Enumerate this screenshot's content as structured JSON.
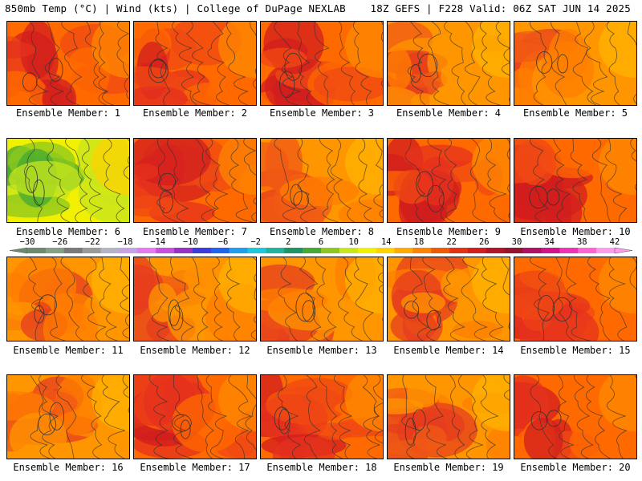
{
  "header": {
    "left": "850mb Temp (°C) | Wind (kts) | College of DuPage NEXLAB",
    "right": "18Z GEFS | F228 Valid: 06Z SAT JUN 14 2025"
  },
  "members": [
    {
      "label": "Ensemble Member: 1",
      "scheme": "hot"
    },
    {
      "label": "Ensemble Member: 2",
      "scheme": "hot"
    },
    {
      "label": "Ensemble Member: 3",
      "scheme": "hot"
    },
    {
      "label": "Ensemble Member: 4",
      "scheme": "warm"
    },
    {
      "label": "Ensemble Member: 5",
      "scheme": "warm"
    },
    {
      "label": "Ensemble Member: 6",
      "scheme": "cool"
    },
    {
      "label": "Ensemble Member: 7",
      "scheme": "hot"
    },
    {
      "label": "Ensemble Member: 8",
      "scheme": "warm"
    },
    {
      "label": "Ensemble Member: 9",
      "scheme": "hot"
    },
    {
      "label": "Ensemble Member: 10",
      "scheme": "hot"
    },
    {
      "label": "Ensemble Member: 11",
      "scheme": "warm"
    },
    {
      "label": "Ensemble Member: 12",
      "scheme": "warm"
    },
    {
      "label": "Ensemble Member: 13",
      "scheme": "warm"
    },
    {
      "label": "Ensemble Member: 14",
      "scheme": "warm"
    },
    {
      "label": "Ensemble Member: 15",
      "scheme": "hot"
    },
    {
      "label": "Ensemble Member: 16",
      "scheme": "warm"
    },
    {
      "label": "Ensemble Member: 17",
      "scheme": "hot"
    },
    {
      "label": "Ensemble Member: 18",
      "scheme": "hot"
    },
    {
      "label": "Ensemble Member: 19",
      "scheme": "warm"
    },
    {
      "label": "Ensemble Member: 20",
      "scheme": "hot"
    }
  ],
  "colorbar": {
    "ticks": [
      "−30",
      "−26",
      "−22",
      "−18",
      "−14",
      "−10",
      "−6",
      "−2",
      "2",
      "6",
      "10",
      "14",
      "18",
      "22",
      "26",
      "30",
      "34",
      "38",
      "42"
    ],
    "colors": [
      "#6e8a6e",
      "#86a086",
      "#7a7a7a",
      "#9a9a9a",
      "#b4b4c8",
      "#c8a0e6",
      "#e678f0",
      "#c850e0",
      "#9632c8",
      "#3c3cdc",
      "#1e64f0",
      "#1ea0f0",
      "#1ec8dc",
      "#1eb4a0",
      "#1e9664",
      "#46aa32",
      "#8cc81e",
      "#c8e61e",
      "#f0f000",
      "#ffd200",
      "#ffaa00",
      "#ff8200",
      "#f05a00",
      "#e63214",
      "#d21e1e",
      "#b41428",
      "#961432",
      "#b40f64",
      "#d2148c",
      "#f032b4",
      "#ff64d2",
      "#ff9bec"
    ]
  },
  "schemes": {
    "hot": [
      "#ff8c00",
      "#ff6a00",
      "#f04a14",
      "#e6321e",
      "#d21e1e"
    ],
    "warm": [
      "#ffb400",
      "#ff9600",
      "#ff7d00",
      "#f05a14",
      "#e63c1e"
    ],
    "cool": [
      "#ffd200",
      "#f0f000",
      "#c8e61e",
      "#8cc81e",
      "#46aa32"
    ]
  }
}
